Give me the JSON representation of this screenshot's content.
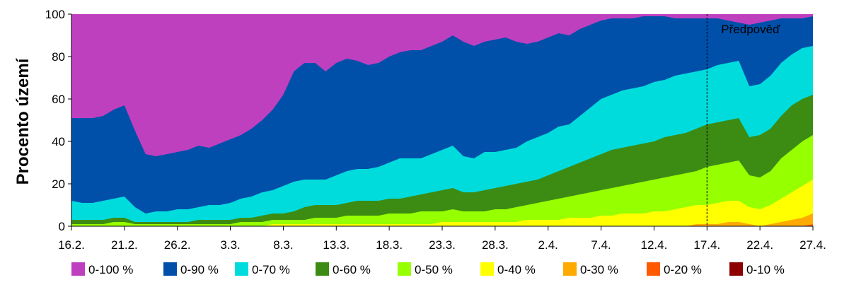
{
  "chart_data": {
    "type": "area",
    "title": "",
    "xlabel": "",
    "ylabel": "Procento území",
    "ylim": [
      0,
      100
    ],
    "yticks": [
      0,
      20,
      40,
      60,
      80,
      100
    ],
    "xtick_labels": [
      "16.2.",
      "21.2.",
      "26.2.",
      "3.3.",
      "8.3.",
      "13.3.",
      "18.3.",
      "23.3.",
      "28.3.",
      "2.4.",
      "7.4.",
      "12.4.",
      "17.4.",
      "22.4.",
      "27.4."
    ],
    "x_count": 71,
    "forecast_day_index": 60,
    "forecast_label": "Předpověď",
    "grid": false,
    "legend_position": "bottom",
    "colors": {
      "0-100 %": "#bf40bf",
      "0-90 %": "#0050aa",
      "0-70 %": "#00dcdc",
      "0-60 %": "#3c8c14",
      "0-50 %": "#96ff00",
      "0-40 %": "#ffff00",
      "0-30 %": "#ffaa00",
      "0-20 %": "#ff5a00",
      "0-10 %": "#8c0000"
    },
    "series": [
      {
        "name": "0-100 %",
        "values": [
          100,
          100,
          100,
          100,
          100,
          100,
          100,
          100,
          100,
          100,
          100,
          100,
          100,
          100,
          100,
          100,
          100,
          100,
          100,
          100,
          100,
          100,
          100,
          100,
          100,
          100,
          100,
          100,
          100,
          100,
          100,
          100,
          100,
          100,
          100,
          100,
          100,
          100,
          100,
          100,
          100,
          100,
          100,
          100,
          100,
          100,
          100,
          100,
          100,
          100,
          100,
          100,
          100,
          100,
          100,
          100,
          100,
          100,
          100,
          100,
          100,
          100,
          100,
          100,
          100,
          100,
          100,
          100,
          100,
          100,
          100
        ]
      },
      {
        "name": "0-90 %",
        "values": [
          51,
          51,
          51,
          52,
          55,
          57,
          45,
          34,
          33,
          34,
          35,
          36,
          38,
          37,
          39,
          41,
          43,
          46,
          50,
          55,
          62,
          73,
          77,
          77,
          73,
          77,
          79,
          78,
          76,
          77,
          80,
          82,
          83,
          83,
          85,
          87,
          90,
          87,
          85,
          87,
          88,
          89,
          87,
          86,
          87,
          89,
          91,
          90,
          93,
          95,
          97,
          98,
          98,
          98,
          99,
          99,
          99,
          98,
          98,
          98,
          98,
          98,
          97,
          96,
          95,
          96,
          97,
          98,
          98,
          98,
          99
        ]
      },
      {
        "name": "0-70 %",
        "values": [
          12,
          11,
          11,
          12,
          13,
          14,
          9,
          6,
          7,
          7,
          8,
          8,
          9,
          10,
          10,
          11,
          13,
          14,
          16,
          17,
          19,
          21,
          22,
          22,
          22,
          24,
          26,
          27,
          27,
          28,
          30,
          32,
          32,
          32,
          34,
          36,
          38,
          33,
          32,
          35,
          35,
          36,
          37,
          40,
          42,
          44,
          47,
          48,
          52,
          56,
          60,
          62,
          64,
          65,
          66,
          68,
          69,
          71,
          72,
          73,
          74,
          76,
          77,
          78,
          66,
          67,
          71,
          77,
          81,
          84,
          85
        ]
      },
      {
        "name": "0-60 %",
        "values": [
          3,
          3,
          3,
          3,
          4,
          4,
          2,
          2,
          2,
          2,
          2,
          2,
          3,
          3,
          3,
          3,
          4,
          4,
          5,
          6,
          6,
          7,
          9,
          10,
          10,
          10,
          11,
          12,
          12,
          12,
          13,
          13,
          14,
          15,
          16,
          17,
          18,
          16,
          16,
          17,
          18,
          19,
          20,
          21,
          22,
          24,
          26,
          28,
          30,
          32,
          34,
          36,
          37,
          38,
          39,
          40,
          42,
          43,
          44,
          46,
          48,
          49,
          50,
          51,
          42,
          43,
          46,
          52,
          57,
          60,
          62
        ]
      },
      {
        "name": "0-50 %",
        "values": [
          1,
          1,
          1,
          1,
          2,
          2,
          1,
          1,
          1,
          1,
          1,
          1,
          1,
          1,
          1,
          1,
          2,
          2,
          2,
          3,
          3,
          3,
          3,
          4,
          4,
          4,
          5,
          5,
          5,
          5,
          6,
          6,
          6,
          7,
          7,
          7,
          8,
          7,
          7,
          7,
          8,
          8,
          9,
          10,
          11,
          12,
          13,
          14,
          15,
          16,
          17,
          18,
          19,
          20,
          21,
          22,
          23,
          24,
          25,
          26,
          28,
          29,
          30,
          31,
          24,
          23,
          26,
          32,
          36,
          40,
          43
        ]
      },
      {
        "name": "0-40 %",
        "values": [
          0,
          0,
          0,
          0,
          0,
          0,
          0,
          0,
          0,
          0,
          0,
          0,
          0,
          0,
          0,
          0,
          0,
          0,
          0,
          1,
          1,
          1,
          1,
          1,
          1,
          1,
          1,
          1,
          1,
          1,
          1,
          1,
          1,
          1,
          1,
          2,
          2,
          2,
          2,
          2,
          2,
          2,
          2,
          3,
          3,
          3,
          3,
          4,
          4,
          4,
          5,
          5,
          6,
          6,
          6,
          7,
          7,
          8,
          9,
          10,
          10,
          11,
          12,
          12,
          9,
          8,
          10,
          13,
          16,
          19,
          22
        ]
      },
      {
        "name": "0-30 %",
        "values": [
          0,
          0,
          0,
          0,
          0,
          0,
          0,
          0,
          0,
          0,
          0,
          0,
          0,
          0,
          0,
          0,
          0,
          0,
          0,
          0,
          0,
          0,
          0,
          0,
          0,
          0,
          0,
          0,
          0,
          0,
          0,
          0,
          0,
          0,
          0,
          0,
          0,
          0,
          0,
          0,
          0,
          0,
          0,
          0,
          0,
          0,
          0,
          0,
          0,
          0,
          0,
          0,
          0,
          0,
          0,
          0,
          0,
          0,
          0,
          1,
          1,
          1,
          2,
          2,
          1,
          0,
          1,
          2,
          3,
          4,
          6
        ]
      },
      {
        "name": "0-20 %",
        "values": [
          0,
          0,
          0,
          0,
          0,
          0,
          0,
          0,
          0,
          0,
          0,
          0,
          0,
          0,
          0,
          0,
          0,
          0,
          0,
          0,
          0,
          0,
          0,
          0,
          0,
          0,
          0,
          0,
          0,
          0,
          0,
          0,
          0,
          0,
          0,
          0,
          0,
          0,
          0,
          0,
          0,
          0,
          0,
          0,
          0,
          0,
          0,
          0,
          0,
          0,
          0,
          0,
          0,
          0,
          0,
          0,
          0,
          0,
          0,
          0,
          0,
          0,
          0,
          0,
          0,
          0,
          0,
          0,
          0,
          0,
          1
        ]
      },
      {
        "name": "0-10 %",
        "values": [
          0,
          0,
          0,
          0,
          0,
          0,
          0,
          0,
          0,
          0,
          0,
          0,
          0,
          0,
          0,
          0,
          0,
          0,
          0,
          0,
          0,
          0,
          0,
          0,
          0,
          0,
          0,
          0,
          0,
          0,
          0,
          0,
          0,
          0,
          0,
          0,
          0,
          0,
          0,
          0,
          0,
          0,
          0,
          0,
          0,
          0,
          0,
          0,
          0,
          0,
          0,
          0,
          0,
          0,
          0,
          0,
          0,
          0,
          0,
          0,
          0,
          0,
          0,
          0,
          0,
          0,
          0,
          0,
          0,
          0,
          0
        ]
      }
    ]
  }
}
